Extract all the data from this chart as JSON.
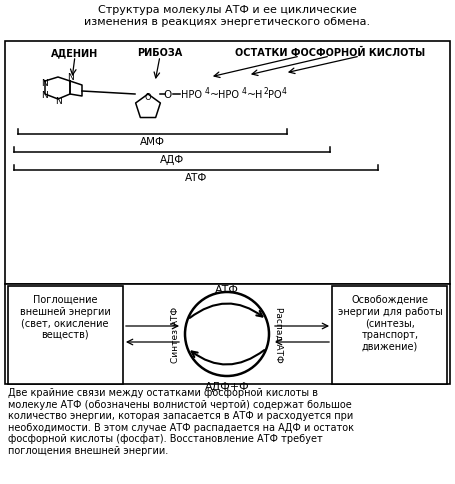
{
  "title": "Структура молекулы АТФ и ее циклические\nизменения в реакциях энергетического обмена.",
  "bottom_text": "Две крайние связи между остатками фосфорной кислоты в\nмолекуле АТФ (обозначены волнистой чертой) содержат большое\nколичество энергии, которая запасается в АТФ и расходуется при\nнеобходимости. В этом случае АТФ распадается на АДФ и остаток\nфосфорной кислоты (фосфат). Восстановление АТФ требует\nпоглощения внешней энергии.",
  "label_adenin": "АДЕНИН",
  "label_riboza": "РИБОЗА",
  "label_ostatki": "ОСТАТКИ ФОСФОРНОЙ КИСЛОТЫ",
  "label_amf": "АМФ",
  "label_adf": "АДФ",
  "label_atf": "АТФ",
  "label_atf_top": "АТФ",
  "label_adf_phi": "АДФ+Ф",
  "label_sintez": "Синтез АТФ",
  "label_raspad": "Распад АТФ",
  "label_left_box": "Поглощение\nвнешней энергии\n(свет, окисление\nвеществ)",
  "label_right_box": "Освобождение\nэнергии для работы\n(синтезы,\nтранспорт,\nдвижение)",
  "bg_color": "#ffffff",
  "text_color": "#000000"
}
